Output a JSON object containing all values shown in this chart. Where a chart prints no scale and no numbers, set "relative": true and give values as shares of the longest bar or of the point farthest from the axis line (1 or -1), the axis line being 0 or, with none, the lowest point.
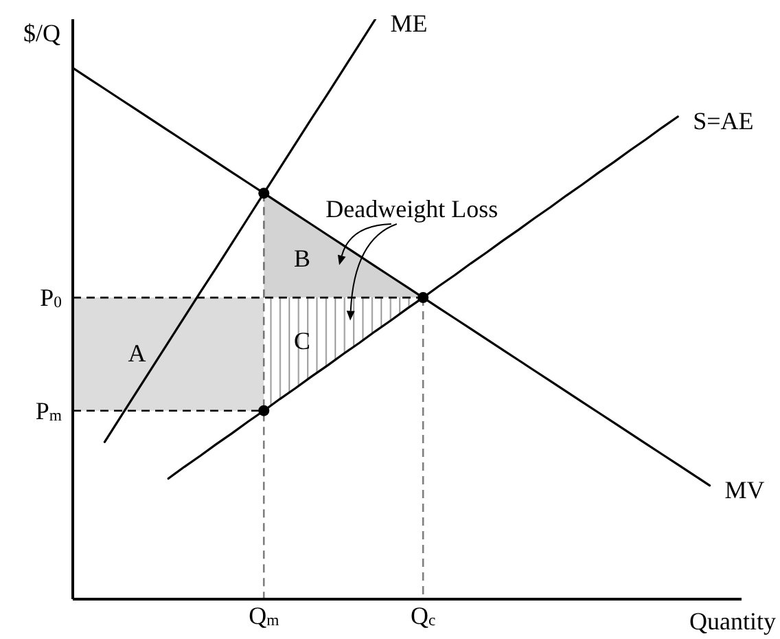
{
  "chart_data": {
    "type": "line",
    "relative": true,
    "xlabel": "Quantity",
    "ylabel": "$/Q",
    "marker": "none",
    "categories": [
      null,
      null,
      null,
      null,
      null,
      null,
      null,
      null,
      null,
      null,
      null,
      null,
      "Q$_{m}$",
      null,
      null,
      null,
      null,
      null,
      null,
      null,
      null,
      null,
      "Q$_{c}$",
      null,
      null,
      null,
      null,
      null,
      null,
      null,
      null,
      null,
      null,
      null,
      null,
      null,
      null,
      null,
      null,
      null,
      null,
      null,
      null
    ],
    "series": [
      {
        "type": "area",
        "color": "#dcdcdc",
        "values": [
          null,
          null,
          null,
          null,
          null,
          null,
          null,
          null,
          null,
          null,
          null,
          null,
          null,
          null,
          null,
          null,
          null,
          null,
          null,
          null,
          null,
          null,
          null,
          null,
          null,
          null,
          null,
          null,
          null,
          null,
          null,
          null,
          null,
          null,
          null,
          null,
          null,
          null,
          null,
          null,
          null,
          null,
          null
        ],
        "upper": [
          0.52,
          0.52,
          0.52,
          0.52,
          0.52,
          0.52,
          0.52,
          0.52,
          0.52,
          0.52,
          0.52,
          0.52,
          0.52,
          null,
          null,
          null,
          null,
          null,
          null,
          null,
          null,
          null,
          null,
          null,
          null,
          null,
          null,
          null,
          null,
          null,
          null,
          null,
          null,
          null,
          null,
          null,
          null,
          null,
          null,
          null,
          null,
          null,
          null
        ],
        "lower": [
          0.325,
          0.325,
          0.325,
          0.325,
          0.325,
          0.325,
          0.325,
          0.325,
          0.325,
          0.325,
          0.325,
          0.325,
          0.325,
          null,
          null,
          null,
          null,
          null,
          null,
          null,
          null,
          null,
          null,
          null,
          null,
          null,
          null,
          null,
          null,
          null,
          null,
          null,
          null,
          null,
          null,
          null,
          null,
          null,
          null,
          null,
          null,
          null,
          null
        ]
      },
      {
        "type": "area",
        "color": "#d3d3d3",
        "values": [
          null,
          null,
          null,
          null,
          null,
          null,
          null,
          null,
          null,
          null,
          null,
          null,
          null,
          null,
          null,
          null,
          null,
          null,
          null,
          null,
          null,
          null,
          null,
          null,
          null,
          null,
          null,
          null,
          null,
          null,
          null,
          null,
          null,
          null,
          null,
          null,
          null,
          null,
          null,
          null,
          null,
          null,
          null
        ],
        "upper": [
          null,
          null,
          null,
          null,
          null,
          null,
          null,
          null,
          null,
          null,
          null,
          null,
          0.7,
          0.682,
          0.664,
          0.646,
          0.628,
          0.61,
          0.592,
          0.574,
          0.556,
          0.538,
          0.52,
          null,
          null,
          null,
          null,
          null,
          null,
          null,
          null,
          null,
          null,
          null,
          null,
          null,
          null,
          null,
          null,
          null,
          null,
          null,
          null
        ],
        "lower": [
          null,
          null,
          null,
          null,
          null,
          null,
          null,
          null,
          null,
          null,
          null,
          null,
          0.52,
          0.52,
          0.52,
          0.52,
          0.52,
          0.52,
          0.52,
          0.52,
          0.52,
          0.52,
          0.52,
          null,
          null,
          null,
          null,
          null,
          null,
          null,
          null,
          null,
          null,
          null,
          null,
          null,
          null,
          null,
          null,
          null,
          null,
          null,
          null
        ]
      },
      {
        "type": "area",
        "color": "#8c8c8c",
        "values": [
          null,
          null,
          null,
          null,
          null,
          null,
          null,
          null,
          null,
          null,
          null,
          null,
          null,
          null,
          null,
          null,
          null,
          null,
          null,
          null,
          null,
          null,
          null,
          null,
          null,
          null,
          null,
          null,
          null,
          null,
          null,
          null,
          null,
          null,
          null,
          null,
          null,
          null,
          null,
          null,
          null,
          null,
          null
        ],
        "upper": [
          null,
          null,
          null,
          null,
          null,
          null,
          null,
          null,
          null,
          null,
          null,
          null,
          0.52,
          0.52,
          0.52,
          0.52,
          0.52,
          0.52,
          0.52,
          0.52,
          0.52,
          0.52,
          0.52,
          null,
          null,
          null,
          null,
          null,
          null,
          null,
          null,
          null,
          null,
          null,
          null,
          null,
          null,
          null,
          null,
          null,
          null,
          null,
          null
        ],
        "lower": [
          null,
          null,
          null,
          null,
          null,
          null,
          null,
          null,
          null,
          null,
          null,
          null,
          0.325,
          0.345,
          0.364,
          0.384,
          0.403,
          0.423,
          0.442,
          0.462,
          0.481,
          0.501,
          0.52,
          null,
          null,
          null,
          null,
          null,
          null,
          null,
          null,
          null,
          null,
          null,
          null,
          null,
          null,
          null,
          null,
          null,
          null,
          null,
          null
        ]
      },
      {
        "name": "ME",
        "color": "#000000",
        "values": [
          null,
          null,
          0.271,
          0.314,
          0.357,
          0.4,
          0.443,
          0.486,
          0.529,
          0.571,
          0.614,
          0.657,
          0.7,
          0.743,
          0.786,
          0.829,
          0.871,
          0.914,
          0.957,
          1,
          null,
          null,
          null,
          null,
          null,
          null,
          null,
          null,
          null,
          null,
          null,
          null,
          null,
          null,
          null,
          null,
          null,
          null,
          null,
          null,
          null,
          null,
          null
        ]
      },
      {
        "name": "S=AE",
        "color": "#000000",
        "values": [
          null,
          null,
          null,
          null,
          null,
          null,
          0.208,
          0.228,
          0.247,
          0.267,
          0.286,
          0.306,
          0.325,
          0.345,
          0.364,
          0.384,
          0.403,
          0.423,
          0.442,
          0.462,
          0.481,
          0.501,
          0.52,
          0.54,
          0.559,
          0.579,
          0.598,
          0.618,
          0.637,
          0.657,
          0.676,
          0.696,
          0.715,
          0.735,
          0.754,
          0.774,
          0.793,
          0.813,
          0.832,
          null,
          null,
          null,
          null
        ]
      },
      {
        "name": "MV",
        "color": "#000000",
        "values": [
          0.916,
          0.898,
          0.88,
          0.862,
          0.844,
          0.826,
          0.808,
          0.79,
          0.772,
          0.754,
          0.736,
          0.718,
          0.7,
          0.682,
          0.664,
          0.646,
          0.628,
          0.61,
          0.592,
          0.574,
          0.556,
          0.538,
          0.52,
          0.502,
          0.484,
          0.466,
          0.448,
          0.43,
          0.412,
          0.394,
          0.376,
          0.358,
          0.34,
          0.322,
          0.304,
          0.286,
          0.268,
          0.25,
          0.232,
          0.214,
          0.196,
          null,
          null
        ]
      },
      {
        "type": "lollipop",
        "color": "#000000",
        "marker": "circle",
        "line_style": "dashed",
        "values": [
          null,
          null,
          null,
          null,
          null,
          null,
          null,
          null,
          null,
          null,
          null,
          null,
          0.7,
          null,
          null,
          null,
          null,
          null,
          null,
          null,
          null,
          null,
          0.52,
          null,
          null,
          null,
          null,
          null,
          null,
          null,
          null,
          null,
          null,
          null,
          null,
          null,
          null,
          null,
          null,
          null,
          null,
          null,
          null
        ]
      },
      {
        "type": "scatter",
        "color": "#000000",
        "marker": "circle",
        "values": [
          null,
          null,
          null,
          null,
          null,
          null,
          null,
          null,
          null,
          null,
          null,
          null,
          0.325,
          null,
          null,
          null,
          null,
          null,
          null,
          null,
          null,
          null,
          null,
          null,
          null,
          null,
          null,
          null,
          null,
          null,
          null,
          null,
          null,
          null,
          null,
          null,
          null,
          null,
          null,
          null,
          null,
          null,
          null
        ]
      }
    ],
    "ref_lines": [
      {
        "axis": "y",
        "value": 0.52,
        "label": "P$_{0}$",
        "color": "#000000",
        "line_style": "dashed"
      },
      {
        "axis": "y",
        "value": 0.325,
        "label": "P$_{m}$",
        "color": "#000000",
        "line_style": "dashed"
      }
    ],
    "annotations": [
      "A",
      "B",
      "C",
      "Deadweight Loss"
    ]
  }
}
